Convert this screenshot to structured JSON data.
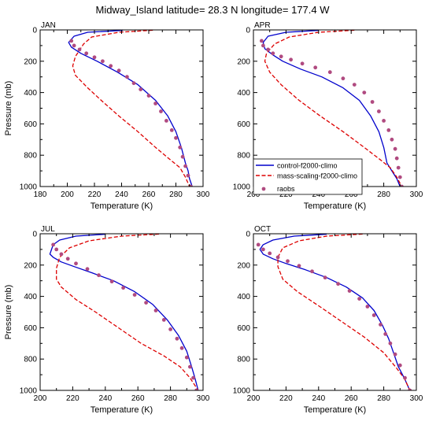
{
  "title": "Midway_Island  latitude= 28.3 N longitude= 177.4 W",
  "legend": {
    "placement": "top-panel-right-lower",
    "entries": [
      {
        "name": "control-f2000-climo",
        "color": "#0000cc",
        "style": "solid"
      },
      {
        "name": "mass-scaling-f2000-climo",
        "color": "#dd0000",
        "style": "dashed"
      },
      {
        "name": "raobs",
        "color": "#b04a80",
        "style": "dots"
      }
    ]
  },
  "chart_data": [
    {
      "type": "line",
      "panel": "JAN",
      "xlabel": "Temperature (K)",
      "ylabel": "Pressure (mb)",
      "xlim": [
        180,
        300
      ],
      "ylim": [
        1000,
        0
      ],
      "xticks": [
        180,
        200,
        220,
        240,
        260,
        280,
        300
      ],
      "yticks": [
        0,
        200,
        400,
        600,
        800,
        1000
      ],
      "series": [
        {
          "name": "control-f2000-climo",
          "x": [
            241,
            215,
            205,
            201,
            203,
            210,
            222,
            237,
            252,
            265,
            274,
            280,
            284,
            287,
            289,
            290,
            292
          ],
          "y": [
            3,
            15,
            40,
            80,
            110,
            150,
            200,
            270,
            350,
            450,
            550,
            650,
            750,
            850,
            900,
            950,
            1000
          ]
        },
        {
          "name": "mass-scaling-f2000-climo",
          "x": [
            263,
            238,
            218,
            212,
            206,
            204,
            206,
            215,
            225,
            238,
            252,
            265,
            276,
            283,
            287,
            290
          ],
          "y": [
            2,
            15,
            45,
            90,
            170,
            230,
            290,
            370,
            450,
            550,
            650,
            750,
            830,
            880,
            940,
            1000
          ]
        },
        {
          "name": "raobs",
          "x": [
            203,
            205,
            209,
            214,
            220,
            226,
            232,
            238,
            244,
            249,
            254,
            260,
            265,
            269,
            273,
            277,
            280,
            283,
            285,
            287,
            289,
            291
          ],
          "y": [
            70,
            100,
            125,
            150,
            175,
            200,
            230,
            260,
            300,
            340,
            380,
            420,
            470,
            520,
            580,
            640,
            690,
            750,
            810,
            870,
            930,
            1000
          ]
        }
      ]
    },
    {
      "type": "line",
      "panel": "APR",
      "xlabel": "Temperature (K)",
      "ylabel": "",
      "xlim": [
        200,
        300
      ],
      "ylim": [
        1000,
        0
      ],
      "xticks": [
        200,
        220,
        240,
        260,
        280,
        300
      ],
      "yticks": [
        0,
        200,
        400,
        600,
        800,
        1000
      ],
      "series": [
        {
          "name": "control-f2000-climo",
          "x": [
            240,
            220,
            209,
            206,
            207,
            212,
            218,
            229,
            242,
            255,
            265,
            272,
            277,
            280,
            282,
            285,
            288,
            290
          ],
          "y": [
            3,
            15,
            40,
            80,
            120,
            160,
            200,
            250,
            300,
            370,
            450,
            550,
            650,
            750,
            850,
            900,
            950,
            1000
          ]
        },
        {
          "name": "mass-scaling-f2000-climo",
          "x": [
            262,
            240,
            222,
            213,
            208,
            207,
            210,
            217,
            228,
            241,
            255,
            268,
            278,
            284,
            288,
            291
          ],
          "y": [
            2,
            15,
            45,
            90,
            150,
            200,
            270,
            350,
            450,
            550,
            650,
            750,
            830,
            880,
            940,
            1000
          ]
        },
        {
          "name": "raobs",
          "x": [
            205,
            206,
            209,
            212,
            217,
            223,
            230,
            238,
            247,
            255,
            262,
            268,
            273,
            277,
            280,
            283,
            285,
            287,
            288,
            289,
            290,
            291
          ],
          "y": [
            70,
            100,
            125,
            150,
            170,
            190,
            215,
            240,
            270,
            310,
            350,
            400,
            460,
            520,
            580,
            640,
            700,
            760,
            820,
            880,
            940,
            1000
          ]
        }
      ]
    },
    {
      "type": "line",
      "panel": "JUL",
      "xlabel": "Temperature (K)",
      "ylabel": "Pressure (mb)",
      "xlim": [
        200,
        300
      ],
      "ylim": [
        1000,
        0
      ],
      "xticks": [
        200,
        220,
        240,
        260,
        280,
        300
      ],
      "yticks": [
        0,
        200,
        400,
        600,
        800,
        1000
      ],
      "series": [
        {
          "name": "control-f2000-climo",
          "x": [
            240,
            222,
            212,
            208,
            207,
            206,
            208,
            213,
            221,
            232,
            245,
            258,
            269,
            278,
            285,
            290,
            293,
            295,
            297
          ],
          "y": [
            3,
            15,
            40,
            70,
            100,
            130,
            150,
            180,
            210,
            250,
            300,
            370,
            450,
            550,
            650,
            750,
            850,
            920,
            1000
          ]
        },
        {
          "name": "mass-scaling-f2000-climo",
          "x": [
            273,
            250,
            230,
            218,
            212,
            210,
            210,
            213,
            222,
            234,
            248,
            262,
            276,
            286,
            292,
            297
          ],
          "y": [
            2,
            15,
            45,
            90,
            150,
            220,
            290,
            340,
            420,
            500,
            600,
            700,
            780,
            850,
            920,
            1000
          ]
        },
        {
          "name": "raobs",
          "x": [
            208,
            210,
            213,
            217,
            222,
            229,
            236,
            244,
            251,
            258,
            265,
            271,
            276,
            280,
            284,
            287,
            290,
            292,
            294,
            296
          ],
          "y": [
            70,
            100,
            130,
            160,
            190,
            225,
            265,
            305,
            345,
            390,
            440,
            490,
            550,
            610,
            670,
            730,
            790,
            850,
            920,
            1000
          ]
        }
      ]
    },
    {
      "type": "line",
      "panel": "OCT",
      "xlabel": "Temperature (K)",
      "ylabel": "",
      "xlim": [
        200,
        300
      ],
      "ylim": [
        1000,
        0
      ],
      "xticks": [
        200,
        220,
        240,
        260,
        280,
        300
      ],
      "yticks": [
        0,
        200,
        400,
        600,
        800,
        1000
      ],
      "series": [
        {
          "name": "control-f2000-climo",
          "x": [
            245,
            225,
            212,
            206,
            204,
            206,
            212,
            220,
            232,
            245,
            257,
            267,
            274,
            279,
            283,
            286,
            289,
            293,
            296
          ],
          "y": [
            3,
            15,
            40,
            70,
            100,
            130,
            160,
            190,
            230,
            280,
            340,
            410,
            490,
            580,
            670,
            760,
            850,
            930,
            1000
          ]
        },
        {
          "name": "mass-scaling-f2000-climo",
          "x": [
            267,
            245,
            228,
            218,
            215,
            215,
            218,
            227,
            240,
            254,
            268,
            280,
            288,
            293,
            296
          ],
          "y": [
            2,
            15,
            45,
            90,
            150,
            210,
            290,
            370,
            460,
            560,
            660,
            760,
            860,
            930,
            1000
          ]
        },
        {
          "name": "raobs",
          "x": [
            203,
            206,
            210,
            215,
            221,
            228,
            236,
            244,
            252,
            259,
            265,
            270,
            274,
            278,
            281,
            284,
            287,
            290,
            293,
            296
          ],
          "y": [
            70,
            100,
            125,
            150,
            175,
            205,
            240,
            280,
            320,
            365,
            415,
            465,
            520,
            580,
            640,
            700,
            770,
            840,
            920,
            1000
          ]
        }
      ]
    }
  ]
}
